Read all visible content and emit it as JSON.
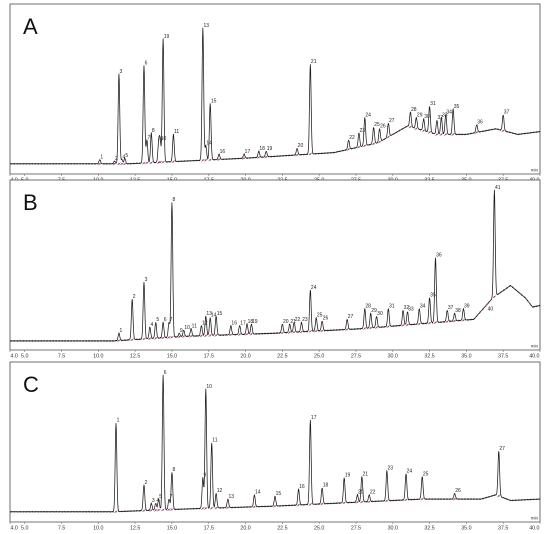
{
  "figure": {
    "accent_colors": {
      "trace": "#1a1a1a",
      "integration_marker": "#5b5bd6",
      "peak_area_marker": "#d23b3b",
      "frame": "#6d6d6d"
    }
  },
  "chart_data": [
    {
      "type": "line",
      "panel_letter": "A",
      "xlabel": "",
      "x_unit_label": "min",
      "ylabel": "",
      "xlim": [
        4.0,
        40.0
      ],
      "x_ticks": [
        4.0,
        5.0,
        7.5,
        10.0,
        12.5,
        15.0,
        17.5,
        20.0,
        22.5,
        25.0,
        27.5,
        30.0,
        32.5,
        35.0,
        37.5,
        40.0
      ],
      "x_tick_labels": [
        "4.0",
        "5.0",
        "7.5",
        "10.0",
        "12.5",
        "15.0",
        "17.5",
        "20.0",
        "22.5",
        "25.0",
        "27.5",
        "30.0",
        "32.5",
        "35.0",
        "37.5",
        "40.0"
      ],
      "ylim": [
        0,
        100
      ],
      "grid": false,
      "baseline": [
        [
          4.0,
          3
        ],
        [
          12.0,
          3
        ],
        [
          20.0,
          7
        ],
        [
          26.0,
          11
        ],
        [
          29.0,
          18
        ],
        [
          31.0,
          30
        ],
        [
          33.0,
          24
        ],
        [
          35.0,
          24
        ],
        [
          37.0,
          28
        ],
        [
          38.5,
          24
        ],
        [
          40.0,
          26
        ]
      ],
      "peaks": [
        {
          "label": "1",
          "x": 10.1,
          "y": 6
        },
        {
          "label": "2",
          "x": 11.1,
          "y": 5
        },
        {
          "label": "3",
          "x": 11.4,
          "y": 67
        },
        {
          "label": "4",
          "x": 11.6,
          "y": 6
        },
        {
          "label": "5",
          "x": 11.8,
          "y": 7
        },
        {
          "label": "6",
          "x": 13.1,
          "y": 73
        },
        {
          "label": "7",
          "x": 13.3,
          "y": 20
        },
        {
          "label": "8",
          "x": 13.6,
          "y": 25
        },
        {
          "label": "9",
          "x": 14.1,
          "y": 18
        },
        {
          "label": "10",
          "x": 14.2,
          "y": 19
        },
        {
          "label": "19",
          "x": 14.4,
          "y": 92
        },
        {
          "label": "11",
          "x": 15.1,
          "y": 24
        },
        {
          "label": "13",
          "x": 17.1,
          "y": 100
        },
        {
          "label": "14",
          "x": 17.3,
          "y": 16
        },
        {
          "label": "15",
          "x": 17.6,
          "y": 46
        },
        {
          "label": "16",
          "x": 18.2,
          "y": 10
        },
        {
          "label": "17",
          "x": 19.9,
          "y": 10
        },
        {
          "label": "18",
          "x": 20.9,
          "y": 12
        },
        {
          "label": "19",
          "x": 21.4,
          "y": 12
        },
        {
          "label": "20",
          "x": 23.5,
          "y": 14
        },
        {
          "label": "21",
          "x": 24.4,
          "y": 74
        },
        {
          "label": "22",
          "x": 27.0,
          "y": 20
        },
        {
          "label": "23",
          "x": 27.7,
          "y": 25
        },
        {
          "label": "24",
          "x": 28.1,
          "y": 36
        },
        {
          "label": "25",
          "x": 28.7,
          "y": 29
        },
        {
          "label": "26",
          "x": 29.1,
          "y": 28
        },
        {
          "label": "27",
          "x": 29.7,
          "y": 32
        },
        {
          "label": "28",
          "x": 31.2,
          "y": 40
        },
        {
          "label": "29",
          "x": 31.6,
          "y": 36
        },
        {
          "label": "30",
          "x": 32.1,
          "y": 35
        },
        {
          "label": "31",
          "x": 32.5,
          "y": 44
        },
        {
          "label": "32",
          "x": 33.0,
          "y": 34
        },
        {
          "label": "33",
          "x": 33.3,
          "y": 36
        },
        {
          "label": "34",
          "x": 33.6,
          "y": 38
        },
        {
          "label": "35",
          "x": 34.1,
          "y": 42
        },
        {
          "label": "36",
          "x": 35.7,
          "y": 31
        },
        {
          "label": "37",
          "x": 37.5,
          "y": 38
        }
      ]
    },
    {
      "type": "line",
      "panel_letter": "B",
      "xlabel": "",
      "x_unit_label": "min",
      "ylabel": "",
      "xlim": [
        4.0,
        40.0
      ],
      "x_ticks": [
        4.0,
        5.0,
        7.5,
        10.0,
        12.5,
        15.0,
        17.5,
        20.0,
        22.5,
        25.0,
        27.5,
        30.0,
        32.5,
        35.0,
        37.5,
        40.0
      ],
      "x_tick_labels": [
        "4.0",
        "5.0",
        "7.5",
        "10.0",
        "12.5",
        "15.0",
        "17.5",
        "20.0",
        "22.5",
        "25.0",
        "27.5",
        "30.0",
        "32.5",
        "35.0",
        "37.5",
        "40.0"
      ],
      "ylim": [
        0,
        100
      ],
      "grid": false,
      "baseline": [
        [
          4.0,
          2
        ],
        [
          11.0,
          2
        ],
        [
          16.0,
          5
        ],
        [
          22.0,
          7
        ],
        [
          28.0,
          10
        ],
        [
          33.0,
          14
        ],
        [
          35.5,
          16
        ],
        [
          36.8,
          30
        ],
        [
          38.0,
          38
        ],
        [
          39.0,
          30
        ],
        [
          39.5,
          24
        ],
        [
          40.0,
          25
        ]
      ],
      "peaks": [
        {
          "label": "1",
          "x": 11.4,
          "y": 7
        },
        {
          "label": "2",
          "x": 12.3,
          "y": 29
        },
        {
          "label": "3",
          "x": 13.1,
          "y": 40
        },
        {
          "label": "4",
          "x": 13.5,
          "y": 11
        },
        {
          "label": "5",
          "x": 13.9,
          "y": 14
        },
        {
          "label": "6",
          "x": 14.4,
          "y": 14
        },
        {
          "label": "7",
          "x": 14.8,
          "y": 14
        },
        {
          "label": "8",
          "x": 15.0,
          "y": 92
        },
        {
          "label": "9",
          "x": 15.5,
          "y": 7
        },
        {
          "label": "10",
          "x": 15.8,
          "y": 9
        },
        {
          "label": "11",
          "x": 16.3,
          "y": 10
        },
        {
          "label": "12",
          "x": 17.0,
          "y": 12
        },
        {
          "label": "13",
          "x": 17.3,
          "y": 18
        },
        {
          "label": "14",
          "x": 17.6,
          "y": 17
        },
        {
          "label": "15",
          "x": 18.0,
          "y": 18
        },
        {
          "label": "16",
          "x": 19.0,
          "y": 12
        },
        {
          "label": "17",
          "x": 19.6,
          "y": 12
        },
        {
          "label": "18",
          "x": 20.1,
          "y": 13
        },
        {
          "label": "19",
          "x": 20.4,
          "y": 13
        },
        {
          "label": "20",
          "x": 22.5,
          "y": 13
        },
        {
          "label": "21",
          "x": 23.0,
          "y": 13
        },
        {
          "label": "22",
          "x": 23.3,
          "y": 14
        },
        {
          "label": "23",
          "x": 23.8,
          "y": 14
        },
        {
          "label": "24",
          "x": 24.4,
          "y": 35
        },
        {
          "label": "25",
          "x": 24.8,
          "y": 17
        },
        {
          "label": "26",
          "x": 25.2,
          "y": 15
        },
        {
          "label": "27",
          "x": 26.9,
          "y": 16
        },
        {
          "label": "28",
          "x": 28.1,
          "y": 23
        },
        {
          "label": "29",
          "x": 28.5,
          "y": 20
        },
        {
          "label": "30",
          "x": 28.9,
          "y": 18
        },
        {
          "label": "31",
          "x": 29.7,
          "y": 23
        },
        {
          "label": "32",
          "x": 30.7,
          "y": 22
        },
        {
          "label": "33",
          "x": 31.0,
          "y": 21
        },
        {
          "label": "34",
          "x": 31.8,
          "y": 23
        },
        {
          "label": "35",
          "x": 32.5,
          "y": 30
        },
        {
          "label": "36",
          "x": 32.9,
          "y": 56
        },
        {
          "label": "37",
          "x": 33.7,
          "y": 22
        },
        {
          "label": "38",
          "x": 34.2,
          "y": 20
        },
        {
          "label": "39",
          "x": 34.8,
          "y": 23
        },
        {
          "label": "40",
          "x": 36.4,
          "y": 21
        },
        {
          "label": "41",
          "x": 36.9,
          "y": 100
        }
      ]
    },
    {
      "type": "line",
      "panel_letter": "C",
      "xlabel": "",
      "x_unit_label": "min",
      "ylabel": "",
      "xlim": [
        4.0,
        40.0
      ],
      "x_ticks": [
        4.0,
        5.0,
        7.5,
        10.0,
        12.5,
        15.0,
        17.5,
        20.0,
        22.5,
        25.0,
        27.5,
        30.0,
        32.5,
        35.0,
        37.5,
        40.0
      ],
      "x_tick_labels": [
        "4.0",
        "5.0",
        "7.5",
        "10.0",
        "12.5",
        "15.0",
        "17.5",
        "20.0",
        "22.5",
        "25.0",
        "27.5",
        "30.0",
        "32.5",
        "35.0",
        "37.5",
        "40.0"
      ],
      "ylim": [
        0,
        100
      ],
      "grid": false,
      "baseline": [
        [
          4.0,
          3
        ],
        [
          11.0,
          3
        ],
        [
          16.0,
          5
        ],
        [
          22.0,
          7
        ],
        [
          28.0,
          10
        ],
        [
          32.0,
          12
        ],
        [
          36.0,
          12
        ],
        [
          37.0,
          15
        ],
        [
          38.0,
          11
        ],
        [
          40.0,
          12
        ]
      ],
      "peaks": [
        {
          "label": "1",
          "x": 11.2,
          "y": 66
        },
        {
          "label": "2",
          "x": 13.1,
          "y": 22
        },
        {
          "label": "3",
          "x": 13.6,
          "y": 9
        },
        {
          "label": "4",
          "x": 13.9,
          "y": 9
        },
        {
          "label": "5",
          "x": 14.1,
          "y": 12
        },
        {
          "label": "6",
          "x": 14.4,
          "y": 100
        },
        {
          "label": "7",
          "x": 14.8,
          "y": 12
        },
        {
          "label": "8",
          "x": 15.0,
          "y": 31
        },
        {
          "label": "9",
          "x": 17.1,
          "y": 27
        },
        {
          "label": "10",
          "x": 17.3,
          "y": 90
        },
        {
          "label": "11",
          "x": 17.7,
          "y": 52
        },
        {
          "label": "12",
          "x": 18.0,
          "y": 16
        },
        {
          "label": "13",
          "x": 18.8,
          "y": 12
        },
        {
          "label": "14",
          "x": 20.6,
          "y": 15
        },
        {
          "label": "15",
          "x": 22.0,
          "y": 14
        },
        {
          "label": "16",
          "x": 23.6,
          "y": 19
        },
        {
          "label": "17",
          "x": 24.4,
          "y": 68
        },
        {
          "label": "18",
          "x": 25.2,
          "y": 20
        },
        {
          "label": "19",
          "x": 26.7,
          "y": 27
        },
        {
          "label": "20",
          "x": 27.6,
          "y": 15
        },
        {
          "label": "21",
          "x": 27.9,
          "y": 28
        },
        {
          "label": "22",
          "x": 28.4,
          "y": 15
        },
        {
          "label": "23",
          "x": 29.6,
          "y": 32
        },
        {
          "label": "24",
          "x": 30.9,
          "y": 30
        },
        {
          "label": "25",
          "x": 32.0,
          "y": 28
        },
        {
          "label": "26",
          "x": 34.2,
          "y": 16
        },
        {
          "label": "27",
          "x": 37.2,
          "y": 46
        }
      ]
    }
  ]
}
